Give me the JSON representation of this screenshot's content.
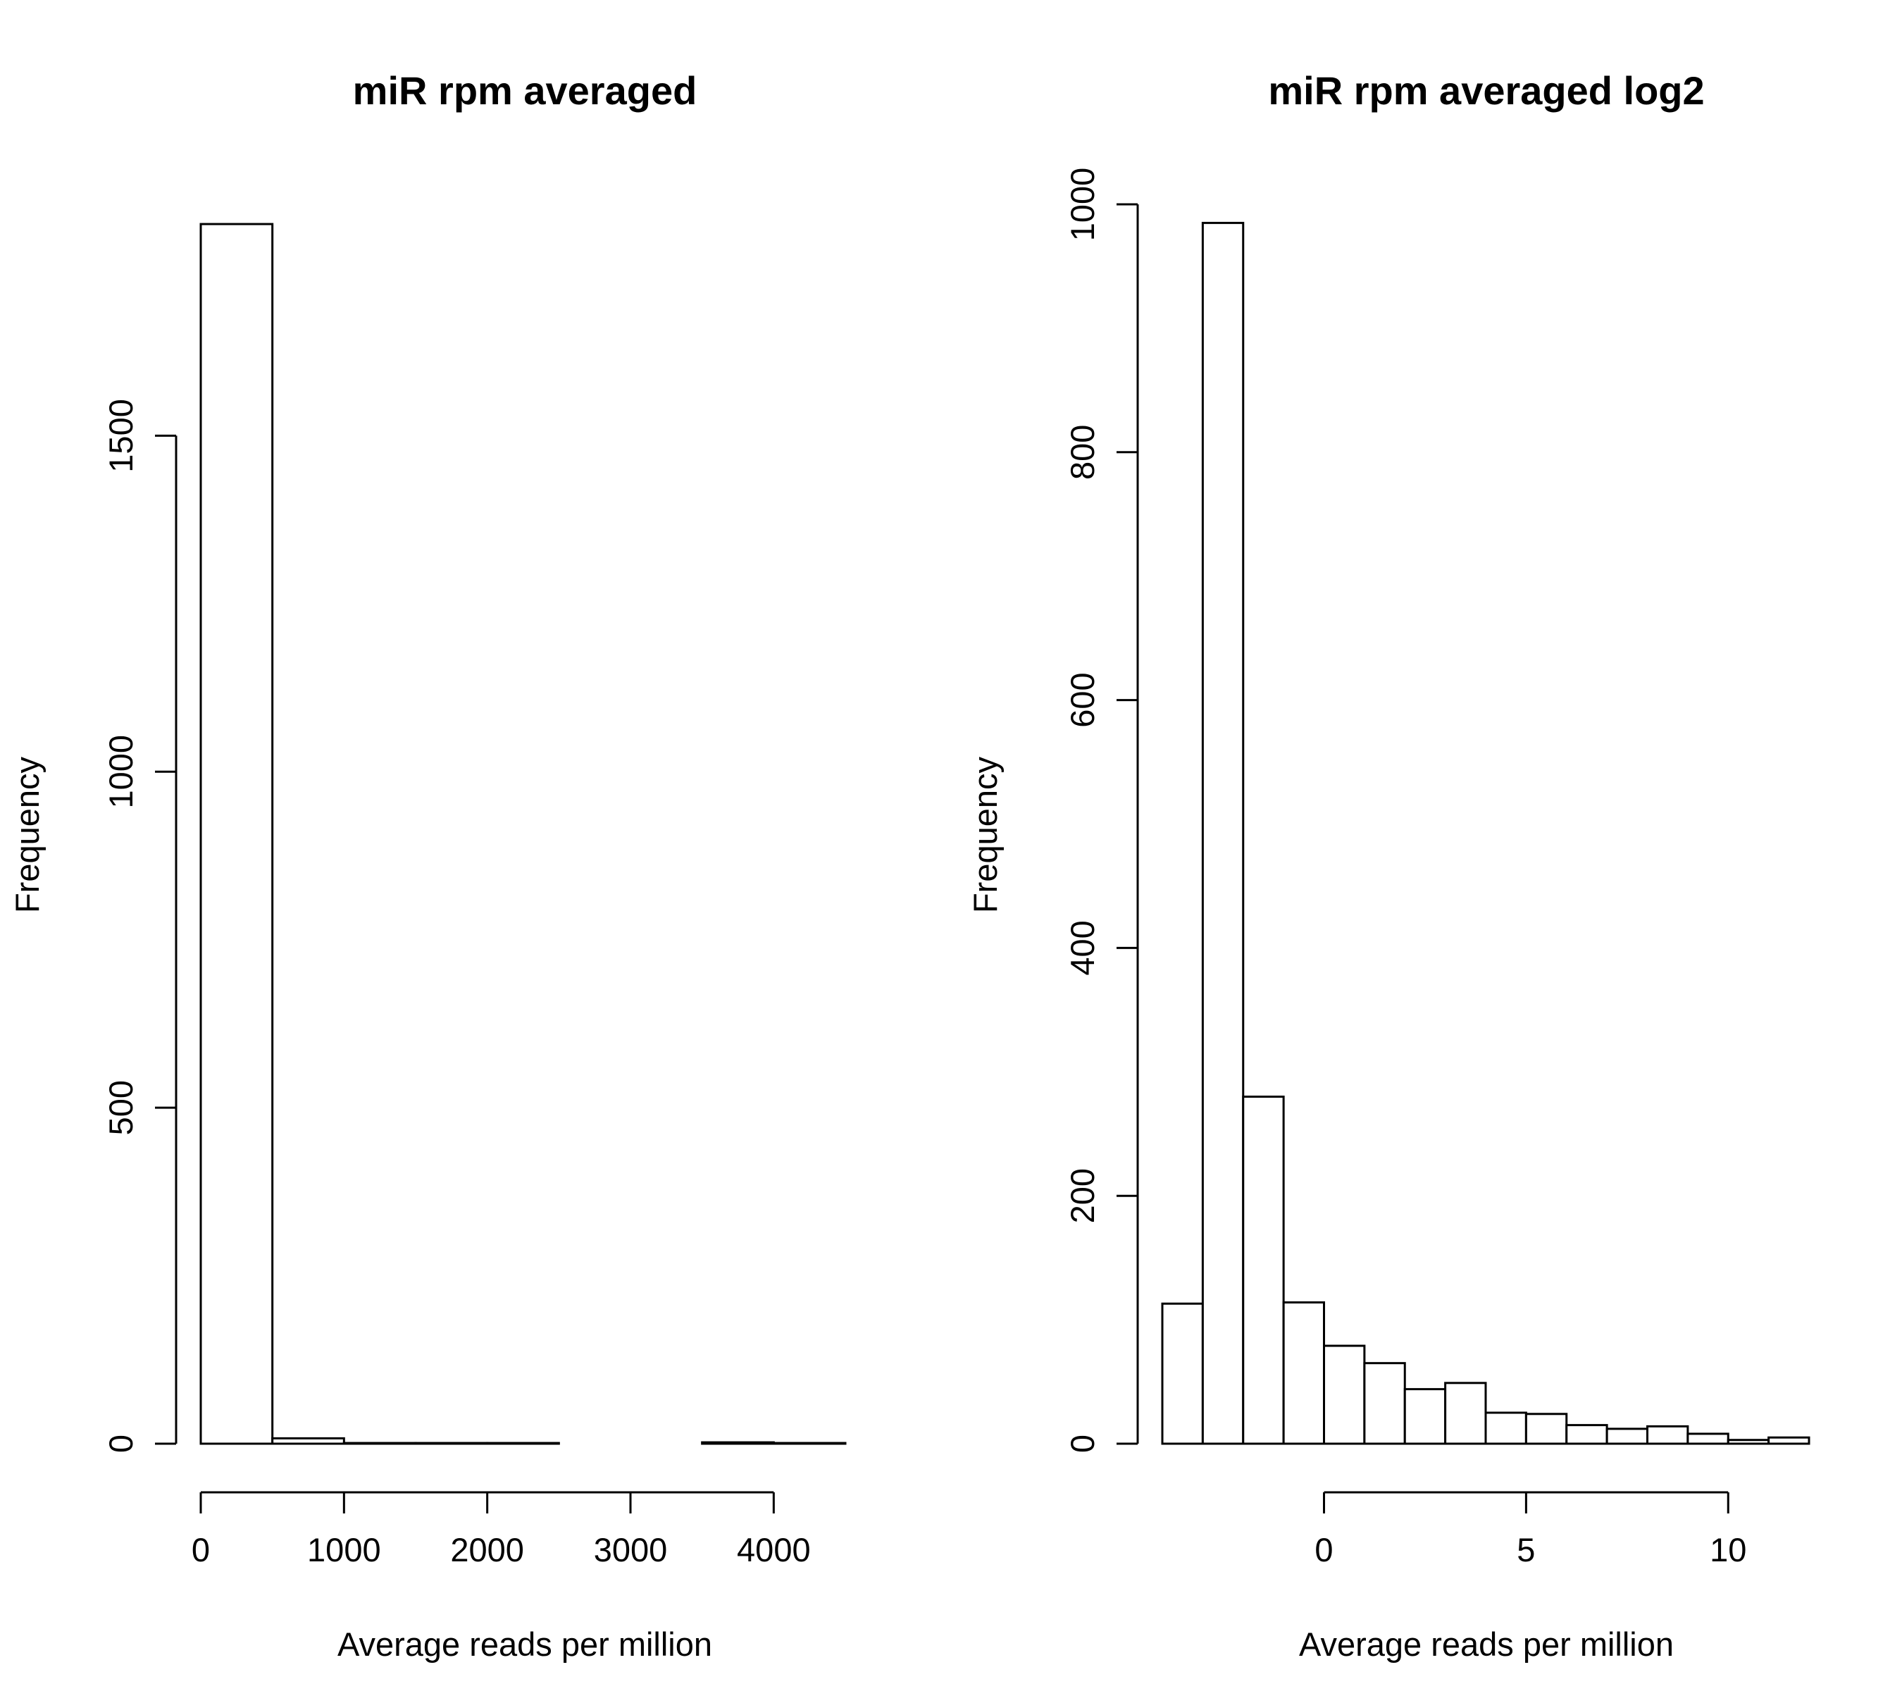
{
  "chart_data": [
    {
      "type": "bar",
      "title": "miR rpm averaged",
      "xlabel": "Average reads per million",
      "ylabel": "Frequency",
      "bin_edges": [
        0,
        500,
        1000,
        1500,
        2000,
        2500,
        3000,
        3500,
        4000,
        4500
      ],
      "values": [
        1815,
        8,
        1,
        1,
        1,
        0,
        0,
        2,
        1
      ],
      "xlim": [
        0,
        4500
      ],
      "ylim": [
        0,
        1815
      ],
      "x_ticks": [
        0,
        1000,
        2000,
        3000,
        4000
      ],
      "x_tick_labels": [
        "0",
        "1000",
        "2000",
        "3000",
        "4000"
      ],
      "y_ticks": [
        0,
        500,
        1000,
        1500
      ],
      "y_tick_labels": [
        "0",
        "500",
        "1000",
        "1500"
      ],
      "grid": false
    },
    {
      "type": "bar",
      "title": "miR rpm averaged log2",
      "xlabel": "Average reads per million",
      "ylabel": "Frequency",
      "bin_edges": [
        -4,
        -3,
        -2,
        -1,
        0,
        1,
        2,
        3,
        4,
        5,
        6,
        7,
        8,
        9,
        10,
        11,
        12
      ],
      "values": [
        113,
        985,
        280,
        114,
        79,
        65,
        44,
        49,
        25,
        24,
        15,
        12,
        14,
        8,
        3,
        5
      ],
      "xlim": [
        -4,
        12
      ],
      "ylim": [
        0,
        1000
      ],
      "x_ticks": [
        0,
        5,
        10
      ],
      "x_tick_labels": [
        "0",
        "5",
        "10"
      ],
      "y_ticks": [
        0,
        200,
        400,
        600,
        800,
        1000
      ],
      "y_tick_labels": [
        "0",
        "200",
        "400",
        "600",
        "800",
        "1000"
      ],
      "grid": false
    }
  ]
}
